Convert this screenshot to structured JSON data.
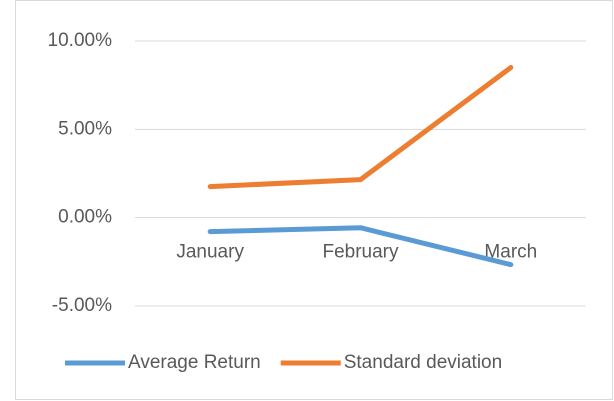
{
  "chart_data": {
    "type": "line",
    "categories": [
      "January",
      "February",
      "March"
    ],
    "series": [
      {
        "name": "Average Return",
        "color": "#5b9bd5",
        "values": [
          -0.79,
          -0.57,
          -2.66
        ]
      },
      {
        "name": "Standard deviation",
        "color": "#ed7d31",
        "values": [
          1.76,
          2.15,
          8.5
        ]
      }
    ],
    "ylim": [
      -5,
      10
    ],
    "yticks": [
      {
        "value": -5,
        "label": "-5.00%"
      },
      {
        "value": 0,
        "label": "0.00%"
      },
      {
        "value": 5,
        "label": "5.00%"
      },
      {
        "value": 10,
        "label": "10.00%"
      }
    ],
    "grid": true,
    "legend": "bottom"
  }
}
